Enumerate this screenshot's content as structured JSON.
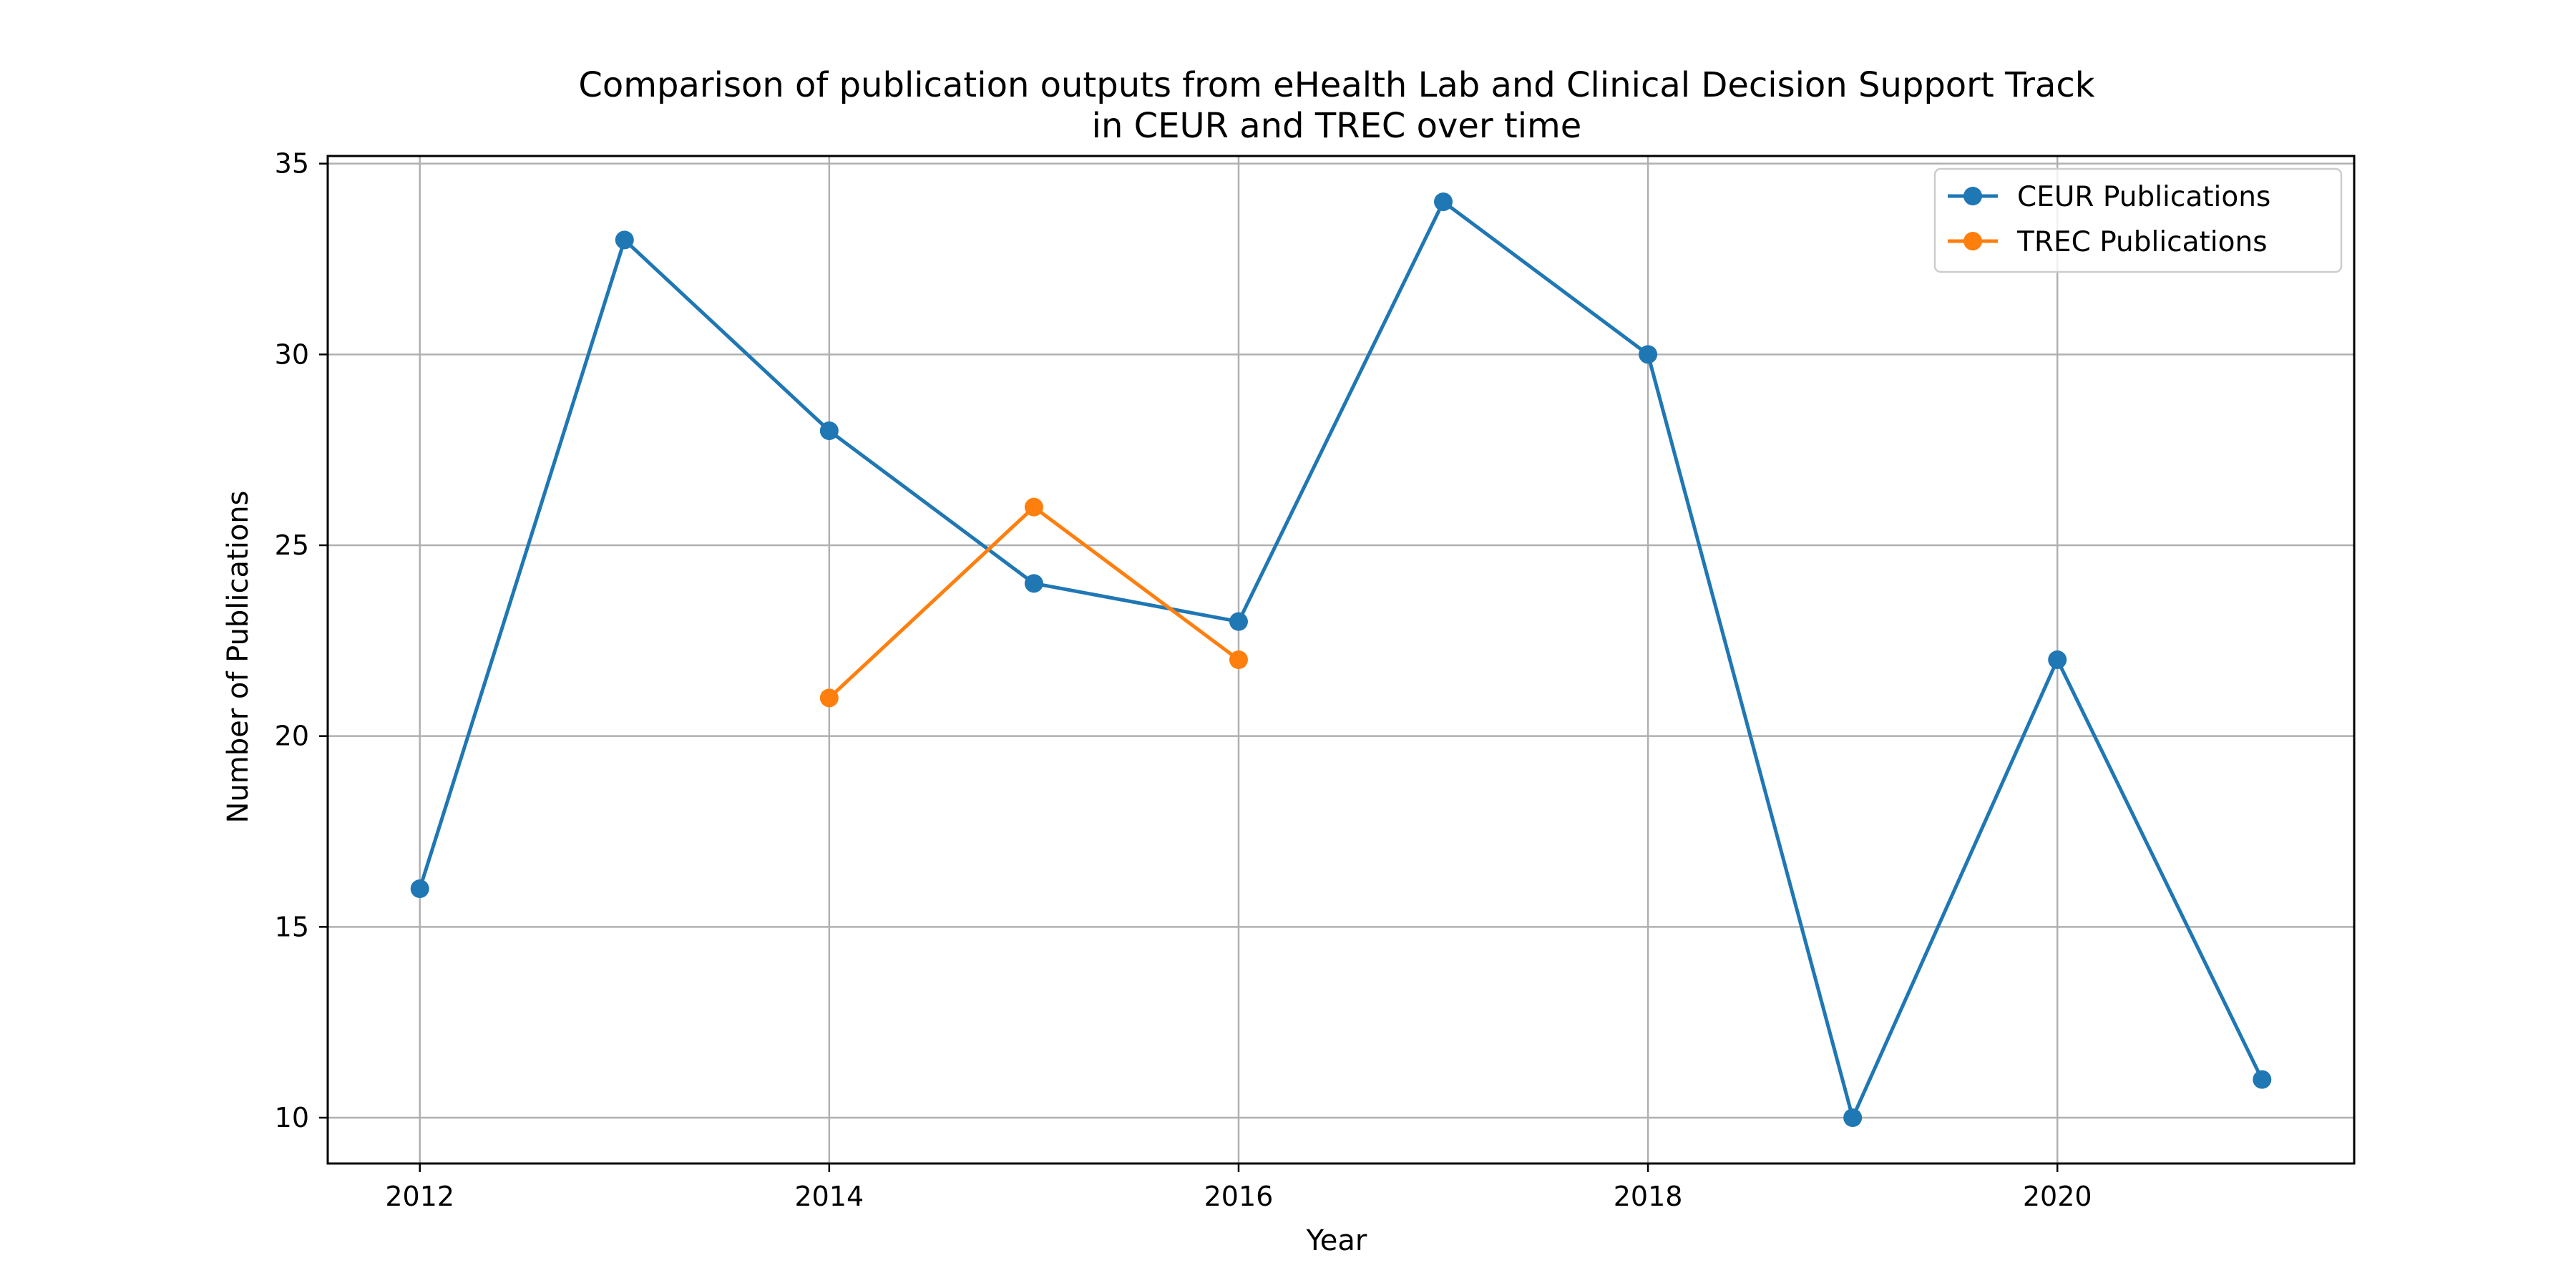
{
  "chart_data": {
    "type": "line",
    "title_lines": [
      "Comparison of publication outputs from eHealth Lab and Clinical Decision Support Track",
      "in CEUR and TREC over time"
    ],
    "xlabel": "Year",
    "ylabel": "Number of Publications",
    "xlim": [
      2011.55,
      2021.45
    ],
    "ylim": [
      8.8,
      35.2
    ],
    "xticks": [
      2012,
      2014,
      2016,
      2018,
      2020
    ],
    "yticks": [
      10,
      15,
      20,
      25,
      30,
      35
    ],
    "grid": true,
    "legend_position": "top-right",
    "series": [
      {
        "name": "CEUR Publications",
        "color": "#1f77b4",
        "marker": "circle",
        "points": [
          {
            "x": 2012,
            "y": 16
          },
          {
            "x": 2013,
            "y": 33
          },
          {
            "x": 2014,
            "y": 28
          },
          {
            "x": 2015,
            "y": 24
          },
          {
            "x": 2016,
            "y": 23
          },
          {
            "x": 2017,
            "y": 34
          },
          {
            "x": 2018,
            "y": 30
          },
          {
            "x": 2019,
            "y": 10
          },
          {
            "x": 2020,
            "y": 22
          },
          {
            "x": 2021,
            "y": 11
          }
        ]
      },
      {
        "name": "TREC Publications",
        "color": "#ff7f0e",
        "marker": "circle",
        "points": [
          {
            "x": 2014,
            "y": 21
          },
          {
            "x": 2015,
            "y": 26
          },
          {
            "x": 2016,
            "y": 22
          }
        ]
      }
    ]
  }
}
